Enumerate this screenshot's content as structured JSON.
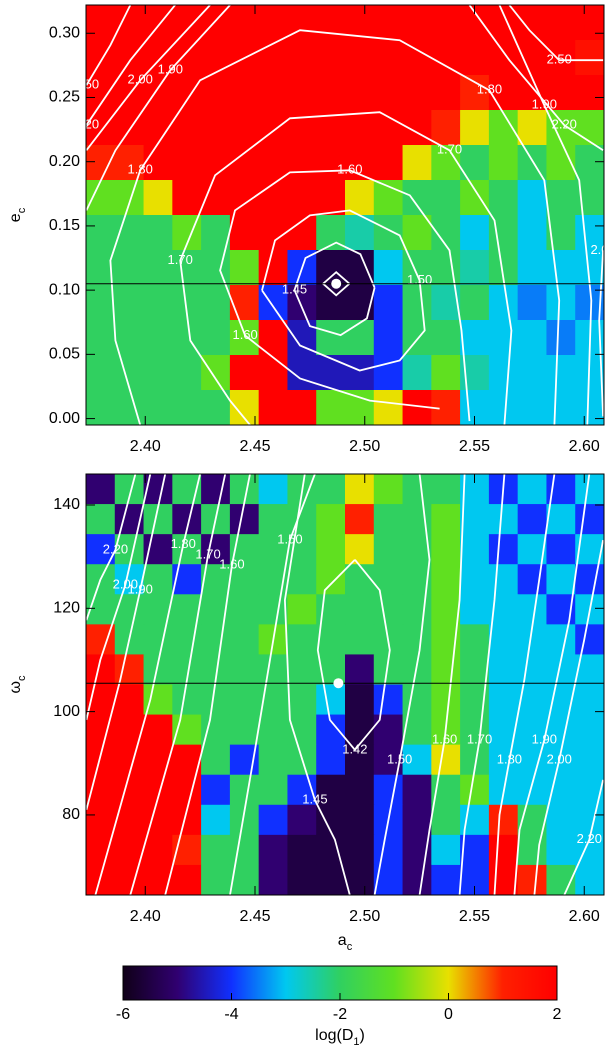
{
  "chart_data": [
    {
      "type": "heatmap",
      "xlim": [
        2.373,
        2.609
      ],
      "ylim": [
        -0.005,
        0.322
      ],
      "xticks": [
        {
          "value": 2.4,
          "label": "2.40"
        },
        2.45,
        {
          "value": 2.5,
          "label": "2.50"
        },
        2.55,
        {
          "value": 2.6,
          "label": "2.60"
        }
      ],
      "yticks": [
        {
          "value": 0,
          "label": "0.00"
        },
        0.05,
        {
          "value": 0.1,
          "label": "0.10"
        },
        0.15,
        {
          "value": 0.2,
          "label": "0.20"
        },
        0.25,
        {
          "value": 0.3,
          "label": "0.30"
        }
      ],
      "ylabel": {
        "text": "e",
        "sub": "c"
      },
      "z": [
        [
          2,
          2,
          2,
          2,
          2,
          2,
          2,
          2,
          2,
          2,
          2,
          2,
          2,
          2,
          2,
          2,
          2,
          2
        ],
        [
          2,
          2,
          2,
          2,
          2,
          2,
          2,
          2,
          2,
          2,
          2,
          2,
          2,
          2,
          2,
          2,
          2,
          1.5
        ],
        [
          2,
          2,
          2,
          2,
          2,
          2,
          2,
          2,
          2,
          2,
          2,
          2,
          2,
          1,
          2,
          2,
          2,
          2
        ],
        [
          2,
          2,
          2,
          2,
          2,
          2,
          2,
          2,
          2,
          2,
          2,
          2,
          1,
          0,
          -1,
          0,
          -1,
          -1
        ],
        [
          1,
          1,
          2,
          2,
          2,
          2,
          2,
          2,
          2,
          2,
          2,
          0,
          -1,
          -2,
          -1,
          -2,
          -1,
          -2
        ],
        [
          -1,
          -1,
          0,
          2,
          2,
          2,
          2,
          2,
          2,
          0,
          -1,
          -2,
          -2,
          -1,
          -2,
          -3,
          -2,
          -2
        ],
        [
          -2,
          -2,
          -2,
          -1,
          -2,
          2,
          2,
          2,
          -2,
          -2.5,
          -2,
          -1,
          -2,
          -3,
          -2,
          -3,
          -2,
          -3
        ],
        [
          -2,
          -2,
          -2,
          -2,
          -2,
          -1,
          2,
          -4,
          -5.5,
          -5.5,
          -3,
          -2,
          -2,
          -2.5,
          -2,
          -3,
          -3,
          -3
        ],
        [
          -2,
          -2,
          -2,
          -2,
          -2,
          1,
          -4,
          -5,
          -5.5,
          -5.5,
          -4,
          -2,
          -2.5,
          -2,
          -3,
          -3.5,
          -3,
          -3.5
        ],
        [
          -2,
          -2,
          -2,
          -2,
          -2,
          -1,
          2,
          -4.5,
          -2,
          -2,
          -4,
          -2,
          -2,
          -3,
          -3,
          -3,
          -3.5,
          -3
        ],
        [
          -2,
          -2,
          -2,
          -2,
          -1,
          2,
          2,
          -4.5,
          -4.5,
          -4.5,
          -4,
          -2.5,
          -1,
          -2.5,
          -3,
          -3,
          -3,
          -3
        ],
        [
          -2,
          -2,
          -2,
          -2,
          -2,
          0,
          2,
          2,
          -1,
          -1,
          0,
          2,
          1,
          -3,
          -3,
          -3,
          -3,
          -3
        ]
      ],
      "contours": [
        {
          "x": [
            2.493,
            2.487,
            2.481,
            2.487,
            2.493
          ],
          "y": [
            0.105,
            0.114,
            0.105,
            0.096,
            0.105
          ]
        },
        {
          "x": [
            2.5045,
            2.498,
            2.487,
            2.473,
            2.468,
            2.475,
            2.489,
            2.501,
            2.5045
          ],
          "y": [
            0.102,
            0.128,
            0.137,
            0.125,
            0.1,
            0.072,
            0.065,
            0.078,
            0.102
          ],
          "labels": [
            "1.45"
          ]
        },
        {
          "x": [
            2.4532,
            2.4591,
            2.475,
            2.4932,
            2.5159,
            2.525,
            2.5273,
            2.5159,
            2.4977,
            2.4705,
            2.4532
          ],
          "y": [
            0.0998,
            0.1387,
            0.1582,
            0.1621,
            0.1426,
            0.1076,
            0.0686,
            0.0452,
            0.0374,
            0.0569,
            0.0998
          ],
          "labels": [
            "1.50"
          ]
        },
        {
          "x": [
            2.5477,
            2.5441,
            2.5386,
            2.5205,
            2.4932,
            2.4659,
            2.4409,
            2.4341,
            2.4455,
            2.4705,
            2.5023,
            2.5341
          ],
          "y": [
            -0.002,
            0.0686,
            0.1309,
            0.1738,
            0.1933,
            0.1917,
            0.1621,
            0.1154,
            0.0647,
            0.0312,
            0.014,
            0.0078
          ],
          "labels": [
            "1.60",
            "1.60"
          ]
        },
        {
          "x": [
            2.5636,
            2.5668,
            2.5591,
            2.5386,
            2.5068,
            2.4659,
            2.4318,
            2.4159,
            2.4205,
            2.4386,
            2.4477
          ],
          "y": [
            -0.005,
            0.0686,
            0.1543,
            0.2089,
            0.2385,
            0.2338,
            0.1894,
            0.1231,
            0.0608,
            0.014,
            -0.005
          ],
          "labels": [
            "1.70",
            "1.70"
          ]
        },
        {
          "x": [
            2.5864,
            2.5886,
            2.5818,
            2.5568,
            2.5159,
            2.4705,
            2.425,
            2.3977,
            2.3841,
            2.3864,
            2.3977
          ],
          "y": [
            -0.005,
            0.092,
            0.1855,
            0.2556,
            0.2946,
            0.3024,
            0.2634,
            0.1933,
            0.1231,
            0.0608,
            -0.005
          ],
          "labels": [
            "1.80",
            "1.80"
          ]
        },
        {
          "x": [
            2.6014,
            2.6032,
            2.5977,
            2.5818,
            2.5614,
            null,
            2.4386,
            2.4114,
            2.3864,
            2.3732
          ],
          "y": [
            -0.005,
            0.092,
            0.1855,
            0.2439,
            0.3219,
            null,
            0.3219,
            0.2712,
            0.2088,
            0.1621
          ],
          "labels": [
            "1.90",
            "1.90"
          ]
        },
        {
          "x": [
            2.6086,
            2.6068,
            2.6086,
            null,
            2.4295,
            2.3977,
            2.3732
          ],
          "y": [
            0.0016,
            0.0764,
            0.131,
            null,
            0.3219,
            0.2634,
            0.2089
          ],
          "labels": [
            "2.00",
            "2.00"
          ]
        },
        {
          "x": [
            2.4136,
            2.3932,
            2.3732,
            null,
            2.6086,
            2.5909,
            2.5659,
            2.5477
          ],
          "y": [
            0.3219,
            0.279,
            0.2284,
            null,
            0.2089,
            0.2284,
            0.279,
            0.3219
          ],
          "labels": [
            "2.20",
            "2.20"
          ]
        },
        {
          "x": [
            2.3932,
            2.3841,
            2.3732,
            null,
            2.6086,
            2.5886,
            2.575,
            2.5659
          ],
          "y": [
            0.3219,
            0.2907,
            0.2595,
            null,
            0.279,
            0.279,
            0.3024,
            0.3219
          ],
          "labels": [
            "2.50",
            "2.50"
          ]
        }
      ],
      "hline": 0.105,
      "marker": {
        "x": 2.487,
        "y": 0.105
      }
    },
    {
      "type": "heatmap",
      "xlim": [
        2.373,
        2.609
      ],
      "ylim": [
        64.5,
        146
      ],
      "xticks": [
        {
          "value": 2.4,
          "label": "2.40"
        },
        2.45,
        {
          "value": 2.5,
          "label": "2.50"
        },
        2.55,
        {
          "value": 2.6,
          "label": "2.60"
        }
      ],
      "yticks": [
        80,
        100,
        120,
        140
      ],
      "xlabel": {
        "text": "a",
        "sub": "c"
      },
      "ylabel": {
        "text": "ω",
        "sub": "c"
      },
      "z": [
        [
          -5,
          -2,
          -5,
          -2,
          -5,
          -2,
          -3,
          -2,
          -2,
          0,
          -1,
          -2,
          -2,
          -3,
          -4,
          -3,
          -4,
          -3
        ],
        [
          -2,
          -5,
          -2,
          -5,
          -2,
          -5,
          -2,
          -2,
          -1,
          1,
          -2,
          -2,
          -1,
          -3,
          -3,
          -4,
          -3,
          -4
        ],
        [
          -4,
          -2,
          -5,
          -2,
          -5,
          -2,
          -2,
          -2,
          -1,
          0,
          -2,
          -2,
          -1,
          -3,
          -4,
          -3,
          -4,
          -3
        ],
        [
          -2,
          -3,
          -2,
          -4,
          -2,
          -2,
          -2,
          -2,
          -1,
          -2,
          -2,
          -2,
          -1,
          -3,
          -3,
          -4,
          -3,
          -4
        ],
        [
          -2,
          -2,
          -2,
          -2,
          -2,
          -2,
          -2,
          -1,
          -2,
          -2,
          -2,
          -2,
          -1,
          -3,
          -3,
          -3,
          -4,
          -3
        ],
        [
          1,
          -2,
          -2,
          -2,
          -2,
          -2,
          -1,
          -2,
          -2,
          -2,
          -2,
          -2,
          -1,
          -2,
          -3,
          -3,
          -3,
          -4
        ],
        [
          2,
          1,
          -2,
          -2,
          -2,
          -2,
          -2,
          -2,
          -2,
          -5,
          -2,
          -2,
          -1,
          -2,
          -3,
          -3,
          -3,
          -3
        ],
        [
          2,
          2,
          -1,
          -2,
          -2,
          -2,
          -2,
          -2,
          -3,
          -5.5,
          -4,
          -2,
          -1,
          -2,
          -3,
          -3,
          -3,
          -3
        ],
        [
          2,
          2,
          2,
          -1,
          -2,
          -2,
          -2,
          -2,
          -4,
          -5.5,
          -5,
          -2,
          -1,
          -2,
          -3,
          -3,
          -3,
          -3
        ],
        [
          2,
          2,
          2,
          2,
          -2,
          -4,
          -2,
          -2,
          -4,
          -5.5,
          -5,
          -3,
          0,
          -2,
          -3,
          -3,
          -3,
          -3
        ],
        [
          2,
          2,
          2,
          2,
          -4,
          -2,
          -2,
          -4,
          -5.5,
          -5.5,
          -4,
          -5,
          -2,
          -1,
          -3,
          -3,
          -3,
          -3
        ],
        [
          2,
          2,
          2,
          2,
          -3,
          -2,
          -4,
          -5,
          -5.5,
          -5.5,
          -4,
          -5,
          -2,
          -3,
          1,
          -2,
          -3,
          -3
        ],
        [
          2,
          2,
          2,
          1,
          -2,
          -2,
          -5,
          -5.5,
          -5.5,
          -5.5,
          -4,
          -5,
          -3,
          -4,
          2,
          -2,
          -3,
          -3
        ],
        [
          2,
          2,
          2,
          2,
          -2,
          -2,
          -5,
          -5.5,
          -5.5,
          -5.5,
          -4,
          -5,
          -4,
          -4,
          2,
          1,
          -2,
          -3
        ]
      ],
      "contours": [
        {
          "x": [
            2.3732,
            2.3795,
            2.3864,
            2.3955
          ],
          "y": [
            117.7,
            125.5,
            131.3,
            146.0
          ],
          "labels": [
            "2.20"
          ]
        },
        {
          "x": [
            2.3732,
            2.3795,
            2.3909,
            2.4023
          ],
          "y": [
            98.4,
            110.0,
            124.5,
            146.0
          ],
          "labels": [
            "2.00"
          ]
        },
        {
          "x": [
            2.3732,
            2.3886,
            2.3977,
            2.4091
          ],
          "y": [
            81.0,
            106.1,
            123.5,
            146.0
          ],
          "labels": [
            "1.90"
          ]
        },
        {
          "x": [
            2.3773,
            2.4023,
            2.4173,
            2.425
          ],
          "y": [
            64.5,
            102.3,
            132.3,
            146.0
          ],
          "labels": [
            "1.80"
          ]
        },
        {
          "x": [
            2.3932,
            2.4159,
            2.4286,
            2.4364
          ],
          "y": [
            64.5,
            98.4,
            130.3,
            146.0
          ],
          "labels": [
            "1.70"
          ]
        },
        {
          "x": [
            2.4091,
            2.4295,
            2.4395,
            2.4477
          ],
          "y": [
            64.5,
            98.4,
            128.4,
            146.0
          ],
          "labels": [
            "1.60"
          ]
        },
        {
          "x": [
            2.4386,
            2.45,
            2.4659,
            2.4773
          ],
          "y": [
            64.5,
            92.6,
            133.2,
            146.0
          ],
          "labels": [
            "1.50"
          ]
        },
        {
          "x": [
            2.4727,
            2.4636,
            2.4659,
            2.4773,
            2.4864,
            2.4932
          ],
          "y": [
            146.0,
            121.6,
            98.4,
            82.9,
            75.2,
            64.5
          ],
          "labels": [
            "1.45"
          ]
        },
        {
          "x": [
            2.4955,
            2.4818,
            2.4786,
            2.4841,
            2.4955,
            2.5068,
            2.5114,
            2.5068,
            2.4955
          ],
          "y": [
            129.4,
            123.5,
            111.9,
            98.4,
            92.6,
            98.4,
            111.9,
            123.5,
            129.4
          ],
          "labels": [
            "1.42"
          ]
        },
        {
          "x": [
            2.525,
            2.5295,
            2.525,
            2.5159,
            2.5091,
            2.5045
          ],
          "y": [
            146.0,
            129.4,
            111.9,
            90.6,
            75.2,
            64.5
          ],
          "labels": [
            "1.50"
          ]
        },
        {
          "x": [
            2.5455,
            2.5432,
            2.5364,
            2.5295,
            2.525
          ],
          "y": [
            146.0,
            121.6,
            94.5,
            77.1,
            64.5
          ],
          "labels": [
            "1.60"
          ]
        },
        {
          "x": [
            2.5636,
            2.5591,
            2.5523,
            2.5455,
            2.5432
          ],
          "y": [
            146.0,
            121.6,
            94.5,
            77.1,
            64.5
          ],
          "labels": [
            "1.70"
          ]
        },
        {
          "x": [
            2.5864,
            2.5795,
            2.5727,
            2.5659,
            2.5614,
            2.5591
          ],
          "y": [
            146.0,
            125.5,
            106.1,
            90.6,
            80.0,
            64.5
          ],
          "labels": [
            "1.80"
          ]
        },
        {
          "x": [
            2.6023,
            2.5932,
            2.5818,
            2.5705,
            2.5682
          ],
          "y": [
            146.0,
            117.7,
            94.5,
            77.1,
            64.5
          ],
          "labels": [
            "1.90"
          ]
        },
        {
          "x": [
            2.6086,
            2.6,
            2.5886,
            2.5795,
            2.5773
          ],
          "y": [
            133.2,
            113.9,
            90.6,
            74.2,
            64.5
          ],
          "labels": [
            "2.00"
          ]
        },
        {
          "x": [
            2.5909,
            2.6023,
            2.6086
          ],
          "y": [
            64.5,
            75.2,
            86.8
          ],
          "labels": [
            "2.20"
          ]
        }
      ],
      "hline": 105.5,
      "marker": {
        "x": 2.488,
        "y": 105.5
      }
    }
  ],
  "colorbar": {
    "clim": [
      -6,
      2
    ],
    "ticks": [
      -6,
      -4,
      -2,
      0,
      2
    ],
    "colors": [
      "#100018",
      "#300070",
      "#1030ff",
      "#00c8f0",
      "#30d060",
      "#60e020",
      "#e8e000",
      "#ff2000",
      "#ff0000"
    ],
    "label": {
      "text": "log(D",
      "sub": "1",
      "tail": ")"
    }
  }
}
